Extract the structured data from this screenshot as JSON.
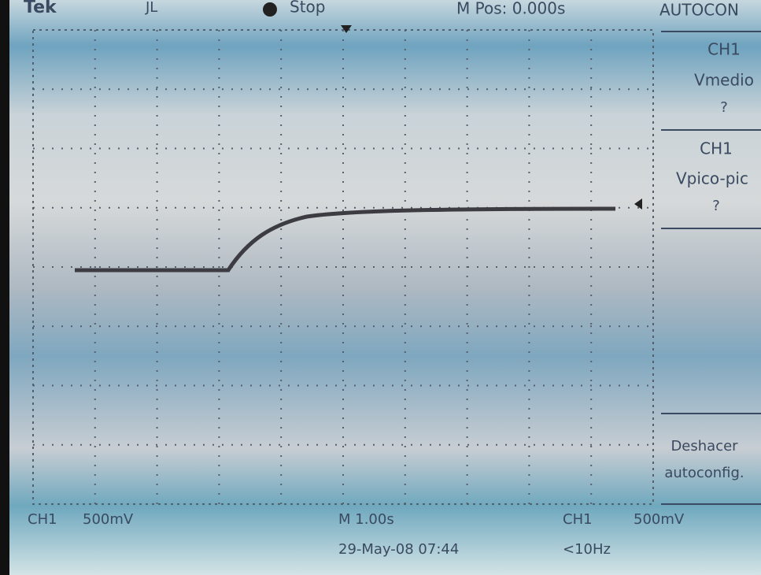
{
  "header": {
    "brand": "Tek",
    "trigger_icon": "JL",
    "status": "Stop",
    "position": "M Pos: 0.000s",
    "menu_title": "AUTOCON"
  },
  "menu": {
    "items": [
      {
        "channel": "CH1",
        "measure": "Vmedio",
        "value": "?"
      },
      {
        "channel": "CH1",
        "measure": "Vpico-pic",
        "value": "?"
      },
      {
        "line1": "Deshacer",
        "line2": "autoconfig."
      }
    ]
  },
  "footer": {
    "channel": "CH1",
    "scale": "500mV",
    "timebase": "M 1.00s",
    "trigger_channel": "CH1",
    "trigger_level": "500mV",
    "datetime": "29-May-08 07:44",
    "frequency": "<10Hz"
  }
}
